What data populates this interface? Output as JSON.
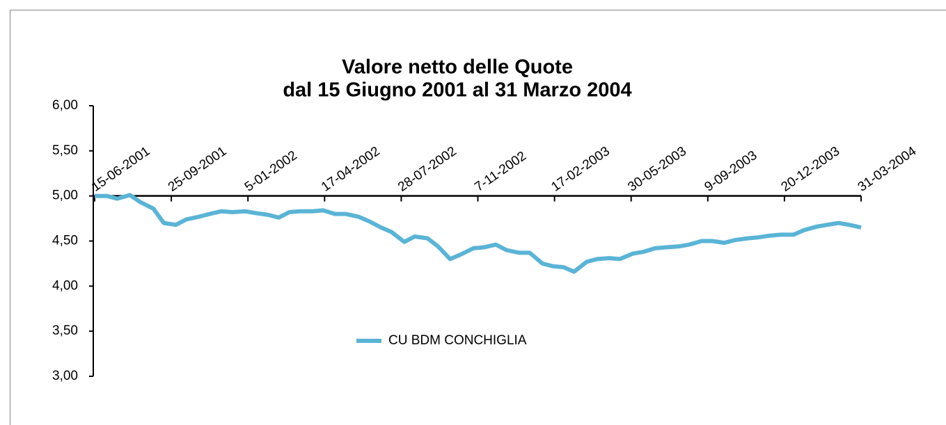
{
  "chart_data": {
    "type": "line",
    "title": "Valore netto delle Quote",
    "subtitle": "dal 15 Giugno 2001 al 31 Marzo 2004",
    "x": [
      "15-06-2001",
      "01-07-2001",
      "15-07-2001",
      "01-08-2001",
      "15-08-2001",
      "01-09-2001",
      "15-09-2001",
      "01-10-2001",
      "15-10-2001",
      "01-11-2001",
      "15-11-2001",
      "01-12-2001",
      "15-12-2001",
      "01-01-2002",
      "15-01-2002",
      "01-02-2002",
      "15-02-2002",
      "01-03-2002",
      "15-03-2002",
      "01-04-2002",
      "15-04-2002",
      "01-05-2002",
      "15-05-2002",
      "01-06-2002",
      "15-06-2002",
      "01-07-2002",
      "15-07-2002",
      "01-08-2002",
      "15-08-2002",
      "01-09-2002",
      "15-09-2002",
      "01-10-2002",
      "15-10-2002",
      "01-11-2002",
      "15-11-2002",
      "01-12-2002",
      "15-12-2002",
      "01-01-2003",
      "15-01-2003",
      "01-02-2003",
      "15-02-2003",
      "01-03-2003",
      "15-03-2003",
      "01-04-2003",
      "15-04-2003",
      "01-05-2003",
      "15-05-2003",
      "01-06-2003",
      "15-06-2003",
      "01-07-2003",
      "15-07-2003",
      "01-08-2003",
      "15-08-2003",
      "01-09-2003",
      "15-09-2003",
      "01-10-2003",
      "15-10-2003",
      "01-11-2003",
      "15-11-2003",
      "01-12-2003",
      "15-12-2003",
      "01-01-2004",
      "15-01-2004",
      "01-02-2004",
      "15-02-2004",
      "01-03-2004",
      "15-03-2004",
      "31-03-2004"
    ],
    "series": [
      {
        "name": "CU BDM CONCHIGLIA",
        "color": "#5ab4d6",
        "values": [
          5.0,
          5.0,
          4.97,
          5.01,
          4.93,
          4.86,
          4.7,
          4.68,
          4.74,
          4.77,
          4.8,
          4.83,
          4.82,
          4.83,
          4.81,
          4.79,
          4.76,
          4.82,
          4.83,
          4.83,
          4.84,
          4.8,
          4.8,
          4.77,
          4.72,
          4.65,
          4.6,
          4.49,
          4.55,
          4.53,
          4.44,
          4.3,
          4.35,
          4.42,
          4.43,
          4.46,
          4.4,
          4.37,
          4.37,
          4.25,
          4.22,
          4.21,
          4.16,
          4.27,
          4.3,
          4.31,
          4.3,
          4.36,
          4.38,
          4.42,
          4.43,
          4.44,
          4.46,
          4.5,
          4.5,
          4.48,
          4.51,
          4.53,
          4.54,
          4.56,
          4.57,
          4.57,
          4.62,
          4.66,
          4.68,
          4.7,
          4.68,
          4.65
        ]
      }
    ],
    "xticks": [
      "15-06-2001",
      "25-09-2001",
      "5-01-2002",
      "17-04-2002",
      "28-07-2002",
      "7-11-2002",
      "17-02-2003",
      "30-05-2003",
      "9-09-2003",
      "20-12-2003",
      "31-03-2004"
    ],
    "ylim": [
      3,
      6
    ],
    "yticks": [
      {
        "value": 3,
        "label": "3,00"
      },
      {
        "value": 3.5,
        "label": "3,50"
      },
      {
        "value": 4,
        "label": "4,00"
      },
      {
        "value": 4.5,
        "label": "4,50"
      },
      {
        "value": 5,
        "label": "5,00"
      },
      {
        "value": 5.5,
        "label": "5,50"
      },
      {
        "value": 6,
        "label": "6,00"
      }
    ],
    "xaxis_at": 5,
    "grid": false,
    "legend": "bottom"
  }
}
